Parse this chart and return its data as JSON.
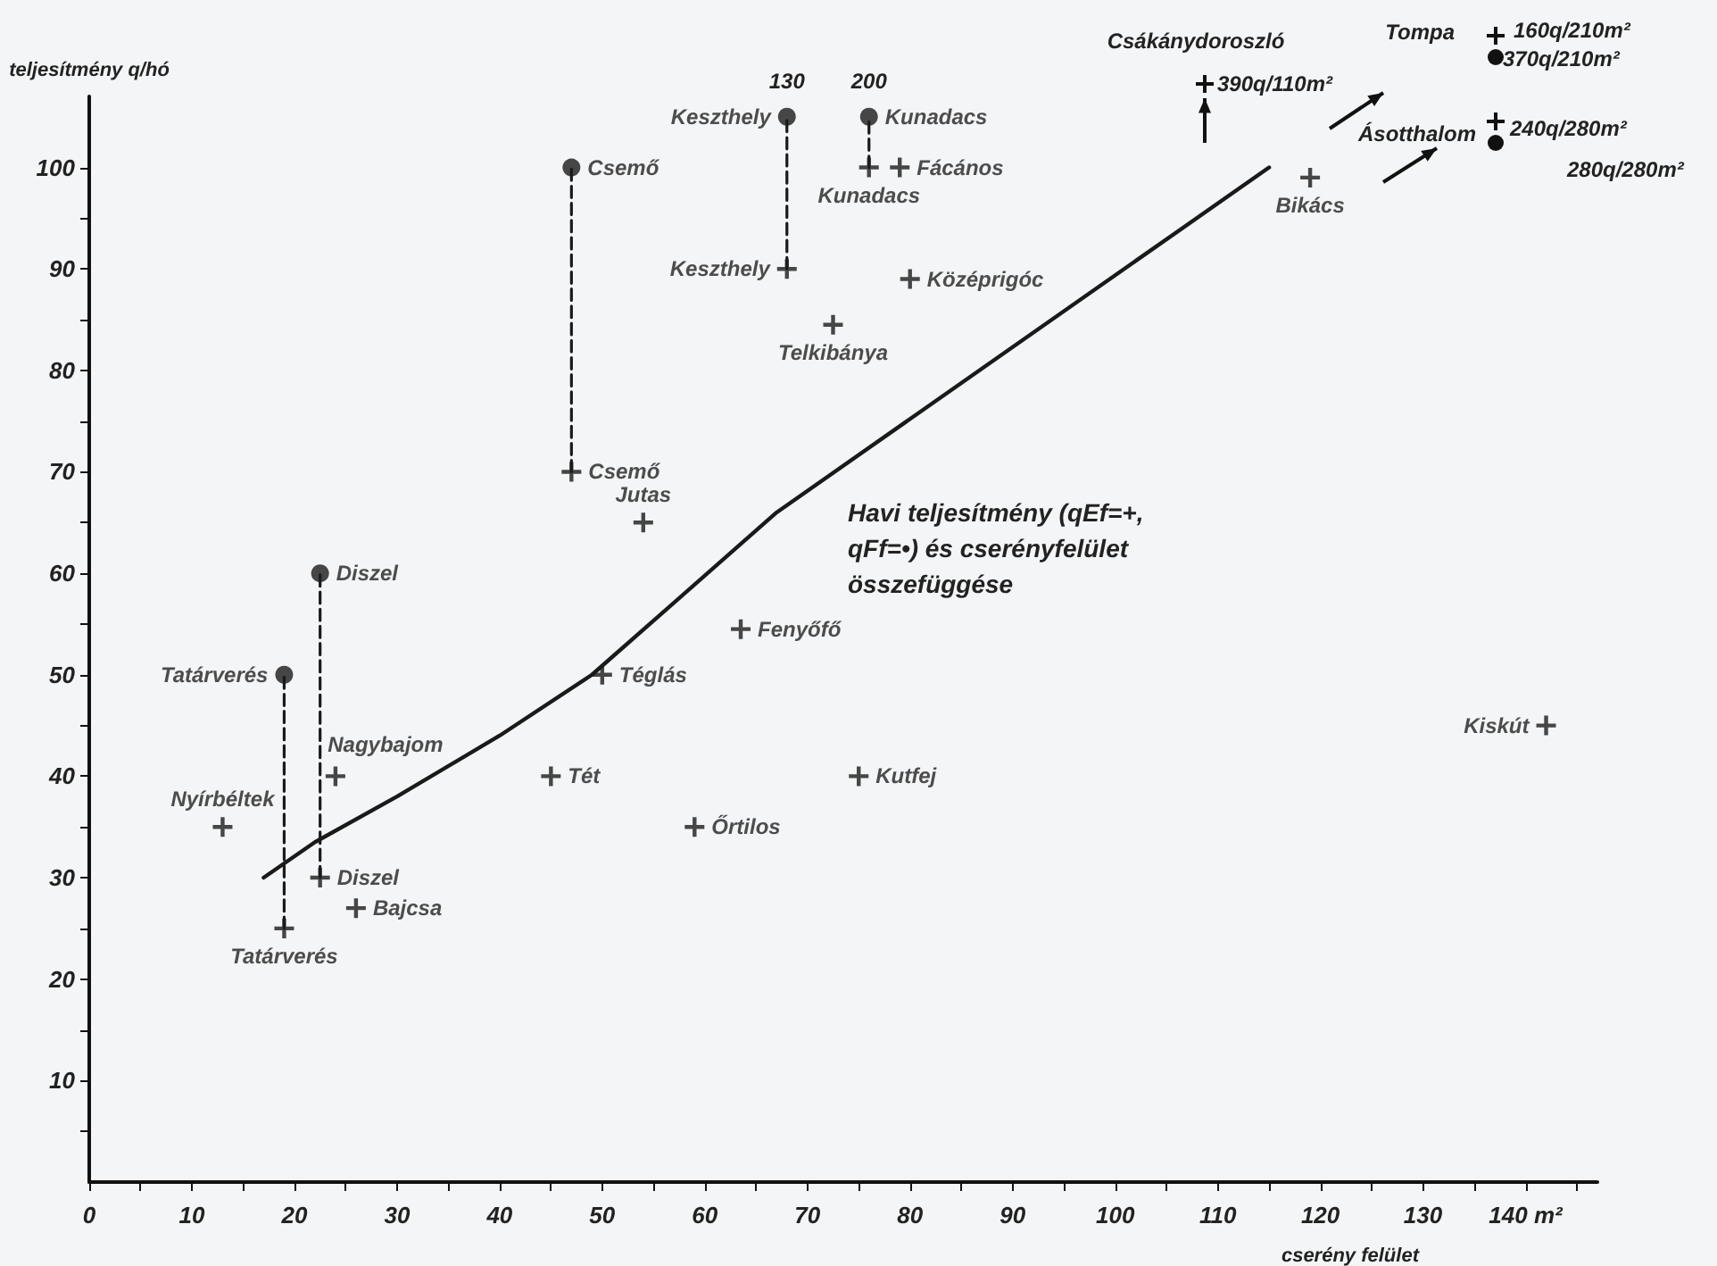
{
  "chart_data": {
    "type": "scatter",
    "title": "Havi teljesítmény (qEf=+, qFf=•) és cserényfelület összefüggése",
    "xlabel": "cserény felület",
    "ylabel": "teljesítmény q/hó",
    "xlim": [
      0,
      147
    ],
    "ylim": [
      0,
      107
    ],
    "xticks": [
      0,
      {
        "value": 5,
        "label": null
      },
      10,
      {
        "value": 15,
        "label": null
      },
      20,
      {
        "value": 25,
        "label": null
      },
      30,
      {
        "value": 35,
        "label": null
      },
      40,
      {
        "value": 45,
        "label": null
      },
      50,
      {
        "value": 55,
        "label": null
      },
      60,
      {
        "value": 65,
        "label": null
      },
      70,
      {
        "value": 75,
        "label": null
      },
      80,
      {
        "value": 85,
        "label": null
      },
      90,
      {
        "value": 95,
        "label": null
      },
      100,
      {
        "value": 105,
        "label": null
      },
      110,
      {
        "value": 115,
        "label": null
      },
      120,
      {
        "value": 125,
        "label": null
      },
      130,
      {
        "value": 135,
        "label": null
      },
      {
        "value": 140,
        "label": "140 m²"
      },
      {
        "value": 145,
        "label": null
      }
    ],
    "yticks": [
      {
        "value": 5,
        "label": null
      },
      10,
      {
        "value": 15,
        "label": null
      },
      20,
      {
        "value": 25,
        "label": null
      },
      30,
      {
        "value": 35,
        "label": null
      },
      40,
      {
        "value": 45,
        "label": null
      },
      50,
      {
        "value": 55,
        "label": null
      },
      60,
      {
        "value": 65,
        "label": null
      },
      70,
      {
        "value": 75,
        "label": null
      },
      80,
      {
        "value": 85,
        "label": null
      },
      90,
      {
        "value": 95,
        "label": null
      },
      100
    ],
    "series": [
      {
        "type": "scatter",
        "marker": "cross",
        "color": "#1a1a1a",
        "x": [
          13,
          19,
          22.5,
          24,
          26,
          45,
          50,
          59,
          63.5,
          54,
          47,
          68,
          72.5,
          76,
          79,
          80,
          75,
          119,
          142
        ],
        "values": [
          35,
          25,
          30,
          40,
          27,
          40,
          50,
          35,
          54.5,
          65,
          70,
          90,
          84.5,
          100,
          100,
          89,
          40,
          99,
          45
        ],
        "value_labels": [
          "Nyírbéltek",
          "Tatárverés",
          "Diszel",
          "Nagybajom",
          "Bajcsa",
          "Tét",
          "Téglás",
          "Őrtilos",
          "Fenyőfő",
          "Jutas",
          "Csemő",
          "Keszthely",
          "Telkibánya",
          "Kunadacs",
          "Fácános",
          "Középrigóc",
          "Kutfej",
          "Bikács",
          "Kiskút"
        ]
      },
      {
        "type": "scatter",
        "marker": "circle",
        "color": "#1a1a1a",
        "x": [
          19,
          22.5,
          47,
          68,
          76
        ],
        "values": [
          50,
          60,
          100,
          105,
          105
        ],
        "value_labels": [
          "Tatárverés",
          "Diszel",
          "Csemő",
          "Keszthely",
          "Kunadacs"
        ]
      },
      {
        "type": "line",
        "marker": "none",
        "line_style": "dashed",
        "color": "#1a1a1a",
        "x": [
          19,
          19
        ],
        "values": [
          25,
          50
        ]
      },
      {
        "type": "line",
        "marker": "none",
        "line_style": "dashed",
        "color": "#1a1a1a",
        "x": [
          22.5,
          22.5
        ],
        "values": [
          30,
          60
        ]
      },
      {
        "type": "line",
        "marker": "none",
        "line_style": "dashed",
        "color": "#1a1a1a",
        "x": [
          47,
          47
        ],
        "values": [
          70,
          100
        ]
      },
      {
        "type": "line",
        "marker": "none",
        "line_style": "dashed",
        "color": "#1a1a1a",
        "x": [
          68,
          68
        ],
        "values": [
          90,
          105
        ]
      },
      {
        "type": "line",
        "marker": "none",
        "line_style": "dashed",
        "color": "#1a1a1a",
        "x": [
          76,
          76
        ],
        "values": [
          100,
          105
        ]
      },
      {
        "type": "line",
        "marker": "none",
        "line_style": "solid",
        "color": "#1a1a1a",
        "x": [
          17,
          22,
          30,
          40,
          49,
          67,
          115
        ],
        "values": [
          30,
          33.5,
          38,
          44,
          50,
          66,
          100
        ]
      }
    ],
    "annotations": [
      {
        "text": "130",
        "x": 68,
        "y": 105
      },
      {
        "text": "200",
        "x": 76,
        "y": 105
      },
      "Csákánydoroszló",
      "390q/110m²",
      "Tompa",
      "160q/210m²",
      "370q/210m²",
      "Ásotthalom",
      "240q/280m²",
      "280q/280m²"
    ]
  }
}
